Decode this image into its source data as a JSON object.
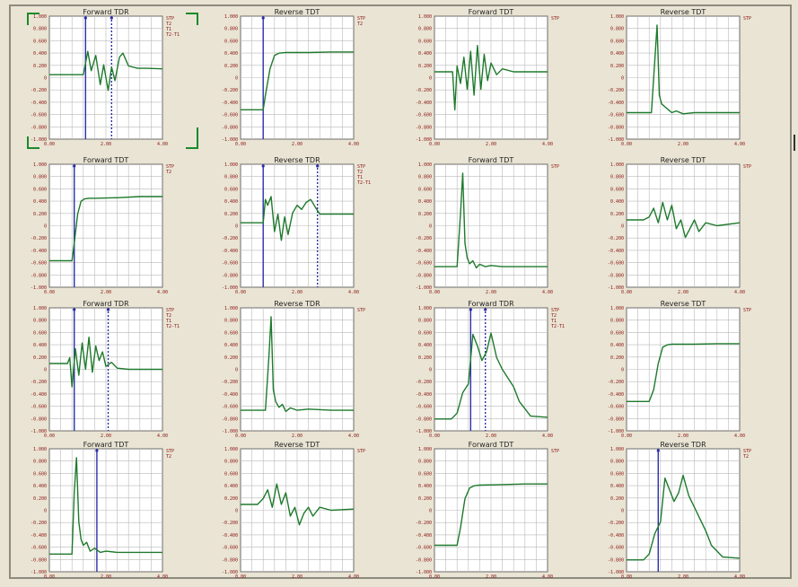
{
  "window": {
    "background": "#e9e4d3"
  },
  "colors": {
    "trace": "#1e7a2c",
    "cursor": "#2b2fa8",
    "grid": "#b9b9b9",
    "tick": "#8b1212",
    "plot_bg": "#ffffff"
  },
  "chart_data": [
    {
      "type": "line",
      "title": "Forward TDR",
      "selected": true,
      "y_ticks": [
        "1.000",
        "0.800",
        "0.600",
        "0.400",
        "0.200",
        "0",
        "-0.200",
        "-0.400",
        "-0.600",
        "-0.800",
        "-1.000"
      ],
      "x_ticks": [
        "0.00",
        "2.00",
        "4.00"
      ],
      "legend": [
        "STP",
        "T2",
        "T1",
        "T2-T1"
      ],
      "cursors": [
        0.32,
        0.55
      ],
      "series": [
        {
          "x": [
            0,
            0.3,
            0.32,
            0.34,
            0.37,
            0.41,
            0.45,
            0.48,
            0.52,
            0.55,
            0.58,
            0.62,
            0.65,
            0.7,
            0.78,
            0.86,
            1
          ],
          "y": [
            0.05,
            0.05,
            0.25,
            0.45,
            0.12,
            0.38,
            -0.12,
            0.22,
            -0.22,
            0.18,
            -0.05,
            0.35,
            0.42,
            0.2,
            0.16,
            0.16,
            0.15
          ]
        }
      ]
    },
    {
      "type": "line",
      "title": "Reverse TDT",
      "selected": false,
      "y_ticks": [
        "1.000",
        "0.800",
        "0.600",
        "0.400",
        "0.200",
        "0",
        "-0.200",
        "-0.400",
        "-0.600",
        "-0.800",
        "-1.000"
      ],
      "x_ticks": [
        "0.00",
        "2.00",
        "4.00"
      ],
      "legend": [
        "STP",
        "T2"
      ],
      "cursors": [
        0.2
      ],
      "series": [
        {
          "x": [
            0,
            0.2,
            0.22,
            0.26,
            0.3,
            0.34,
            0.4,
            0.6,
            0.8,
            1
          ],
          "y": [
            -0.55,
            -0.55,
            -0.3,
            0.15,
            0.38,
            0.42,
            0.43,
            0.43,
            0.44,
            0.44
          ]
        }
      ]
    },
    {
      "type": "line",
      "title": "Forward TDT",
      "selected": false,
      "y_ticks": [
        "1.000",
        "0.800",
        "0.600",
        "0.400",
        "0.200",
        "0",
        "-0.200",
        "-0.400",
        "-0.600",
        "-0.800",
        "-1.000"
      ],
      "x_ticks": [
        "0.00",
        "2.00",
        "4.00"
      ],
      "legend": [
        "STP"
      ],
      "cursors": [],
      "series": [
        {
          "x": [
            0,
            0.16,
            0.18,
            0.2,
            0.23,
            0.26,
            0.29,
            0.32,
            0.35,
            0.38,
            0.41,
            0.44,
            0.47,
            0.5,
            0.55,
            0.6,
            0.7,
            0.8,
            1
          ],
          "y": [
            0.1,
            0.1,
            -0.55,
            0.2,
            -0.1,
            0.35,
            -0.2,
            0.45,
            -0.3,
            0.55,
            -0.2,
            0.4,
            -0.05,
            0.25,
            0.05,
            0.15,
            0.1,
            0.1,
            0.1
          ]
        }
      ]
    },
    {
      "type": "line",
      "title": "Reverse TDT",
      "selected": false,
      "y_ticks": [
        "1.000",
        "0.800",
        "0.600",
        "0.400",
        "0.200",
        "0",
        "-0.200",
        "-0.400",
        "-0.600",
        "-0.800",
        "-1.000"
      ],
      "x_ticks": [
        "0.00",
        "2.00",
        "4.00"
      ],
      "legend": [
        "STP"
      ],
      "cursors": [],
      "series": [
        {
          "x": [
            0,
            0.22,
            0.25,
            0.27,
            0.29,
            0.31,
            0.34,
            0.37,
            0.4,
            0.44,
            0.5,
            0.6,
            0.8,
            1
          ],
          "y": [
            -0.6,
            -0.6,
            0.3,
            0.9,
            -0.3,
            -0.45,
            -0.5,
            -0.55,
            -0.6,
            -0.57,
            -0.62,
            -0.6,
            -0.6,
            -0.6
          ]
        }
      ]
    },
    {
      "type": "line",
      "title": "Forward TDT",
      "selected": false,
      "y_ticks": [
        "1.000",
        "0.800",
        "0.600",
        "0.400",
        "0.200",
        "0",
        "-0.200",
        "-0.400",
        "-0.600",
        "-0.800",
        "-1.000"
      ],
      "x_ticks": [
        "0.00",
        "2.00",
        "4.00"
      ],
      "legend": [
        "STP",
        "T2"
      ],
      "cursors": [
        0.22
      ],
      "series": [
        {
          "x": [
            0,
            0.2,
            0.22,
            0.25,
            0.28,
            0.31,
            0.35,
            0.4,
            0.6,
            0.8,
            1
          ],
          "y": [
            -0.6,
            -0.6,
            -0.3,
            0.2,
            0.42,
            0.46,
            0.47,
            0.47,
            0.48,
            0.5,
            0.5
          ]
        }
      ]
    },
    {
      "type": "line",
      "title": "Reverse TDR",
      "selected": false,
      "y_ticks": [
        "1.000",
        "0.800",
        "0.600",
        "0.400",
        "0.200",
        "0",
        "-0.200",
        "-0.400",
        "-0.600",
        "-0.800",
        "-1.000"
      ],
      "x_ticks": [
        "0.00",
        "2.00",
        "4.00"
      ],
      "legend": [
        "STP",
        "T2",
        "T1",
        "T2-T1"
      ],
      "cursors": [
        0.2,
        0.68
      ],
      "series": [
        {
          "x": [
            0,
            0.2,
            0.22,
            0.24,
            0.27,
            0.3,
            0.33,
            0.36,
            0.39,
            0.42,
            0.46,
            0.5,
            0.54,
            0.58,
            0.62,
            0.66,
            0.7,
            0.8,
            1
          ],
          "y": [
            0.05,
            0.05,
            0.45,
            0.35,
            0.5,
            -0.1,
            0.2,
            -0.25,
            0.15,
            -0.15,
            0.22,
            0.35,
            0.28,
            0.4,
            0.45,
            0.32,
            0.2,
            0.2,
            0.2
          ]
        }
      ]
    },
    {
      "type": "line",
      "title": "Forward TDT",
      "selected": false,
      "y_ticks": [
        "1.000",
        "0.800",
        "0.600",
        "0.400",
        "0.200",
        "0",
        "-0.200",
        "-0.400",
        "-0.600",
        "-0.800",
        "-1.000"
      ],
      "x_ticks": [
        "0.00",
        "2.00",
        "4.00"
      ],
      "legend": [
        "STP"
      ],
      "cursors": [],
      "series": [
        {
          "x": [
            0,
            0.2,
            0.23,
            0.25,
            0.27,
            0.29,
            0.31,
            0.34,
            0.37,
            0.4,
            0.45,
            0.5,
            0.6,
            0.8,
            1
          ],
          "y": [
            -0.7,
            -0.7,
            0.2,
            0.9,
            -0.3,
            -0.55,
            -0.65,
            -0.6,
            -0.72,
            -0.66,
            -0.7,
            -0.68,
            -0.7,
            -0.7,
            -0.7
          ]
        }
      ]
    },
    {
      "type": "line",
      "title": "Reverse TDT",
      "selected": false,
      "y_ticks": [
        "1.000",
        "0.800",
        "0.600",
        "0.400",
        "0.200",
        "0",
        "-0.200",
        "-0.400",
        "-0.600",
        "-0.800",
        "-1.000"
      ],
      "x_ticks": [
        "0.00",
        "2.00",
        "4.00"
      ],
      "legend": [
        "STP"
      ],
      "cursors": [],
      "series": [
        {
          "x": [
            0,
            0.15,
            0.2,
            0.24,
            0.28,
            0.32,
            0.36,
            0.4,
            0.44,
            0.48,
            0.52,
            0.56,
            0.6,
            0.64,
            0.7,
            0.8,
            1
          ],
          "y": [
            0.1,
            0.1,
            0.15,
            0.3,
            0.05,
            0.4,
            0.1,
            0.35,
            -0.05,
            0.1,
            -0.2,
            -0.05,
            0.1,
            -0.1,
            0.05,
            0.0,
            0.05
          ]
        }
      ]
    },
    {
      "type": "line",
      "title": "Forward TDR",
      "selected": false,
      "y_ticks": [
        "1.000",
        "0.800",
        "0.600",
        "0.400",
        "0.200",
        "0",
        "-0.200",
        "-0.400",
        "-0.600",
        "-0.800",
        "-1.000"
      ],
      "x_ticks": [
        "0.00",
        "2.00",
        "4.00"
      ],
      "legend": [
        "STP",
        "T2",
        "T1",
        "T2-T1"
      ],
      "cursors": [
        0.22,
        0.52
      ],
      "series": [
        {
          "x": [
            0,
            0.16,
            0.18,
            0.2,
            0.23,
            0.26,
            0.29,
            0.32,
            0.35,
            0.38,
            0.41,
            0.44,
            0.47,
            0.5,
            0.55,
            0.6,
            0.7,
            0.8,
            1
          ],
          "y": [
            0.1,
            0.1,
            0.2,
            -0.3,
            0.35,
            -0.1,
            0.45,
            0.0,
            0.55,
            -0.05,
            0.4,
            0.15,
            0.3,
            0.05,
            0.12,
            0.02,
            0.0,
            0.0,
            0.0
          ]
        }
      ]
    },
    {
      "type": "line",
      "title": "Reverse TDR",
      "selected": false,
      "y_ticks": [
        "1.000",
        "0.800",
        "0.600",
        "0.400",
        "0.200",
        "0",
        "-0.200",
        "-0.400",
        "-0.600",
        "-0.800",
        "-1.000"
      ],
      "x_ticks": [
        "0.00",
        "2.00",
        "4.00"
      ],
      "legend": [
        "STP"
      ],
      "cursors": [],
      "series": [
        {
          "x": [
            0,
            0.22,
            0.25,
            0.27,
            0.29,
            0.31,
            0.34,
            0.37,
            0.4,
            0.44,
            0.5,
            0.6,
            0.8,
            1
          ],
          "y": [
            -0.7,
            -0.7,
            0.2,
            0.9,
            -0.35,
            -0.55,
            -0.65,
            -0.6,
            -0.72,
            -0.66,
            -0.7,
            -0.68,
            -0.7,
            -0.7
          ]
        }
      ]
    },
    {
      "type": "line",
      "title": "Forward TDR",
      "selected": false,
      "y_ticks": [
        "1.000",
        "0.800",
        "0.600",
        "0.400",
        "0.200",
        "0",
        "-0.200",
        "-0.400",
        "-0.600",
        "-0.800",
        "-1.000"
      ],
      "x_ticks": [
        "0.00",
        "2.00",
        "4.00"
      ],
      "legend": [
        "STP",
        "T2",
        "T1",
        "T2-T1"
      ],
      "cursors": [
        0.32,
        0.45
      ],
      "series": [
        {
          "x": [
            0,
            0.15,
            0.2,
            0.25,
            0.3,
            0.34,
            0.38,
            0.42,
            0.46,
            0.5,
            0.55,
            0.6,
            0.65,
            0.7,
            0.75,
            0.85,
            1
          ],
          "y": [
            -0.85,
            -0.85,
            -0.75,
            -0.4,
            -0.25,
            0.6,
            0.4,
            0.15,
            0.3,
            0.62,
            0.2,
            0.0,
            -0.15,
            -0.3,
            -0.55,
            -0.8,
            -0.82
          ]
        }
      ]
    },
    {
      "type": "line",
      "title": "Reverse TDT",
      "selected": false,
      "y_ticks": [
        "1.000",
        "0.800",
        "0.600",
        "0.400",
        "0.200",
        "0",
        "-0.200",
        "-0.400",
        "-0.600",
        "-0.800",
        "-1.000"
      ],
      "x_ticks": [
        "0.00",
        "2.00",
        "4.00"
      ],
      "legend": [
        "STP"
      ],
      "cursors": [],
      "series": [
        {
          "x": [
            0,
            0.2,
            0.24,
            0.28,
            0.32,
            0.36,
            0.4,
            0.6,
            0.8,
            1
          ],
          "y": [
            -0.55,
            -0.55,
            -0.35,
            0.1,
            0.38,
            0.42,
            0.43,
            0.43,
            0.44,
            0.44
          ]
        }
      ]
    },
    {
      "type": "line",
      "title": "Forward TDT",
      "selected": false,
      "y_ticks": [
        "1.000",
        "0.800",
        "0.600",
        "0.400",
        "0.200",
        "0",
        "-0.200",
        "-0.400",
        "-0.600",
        "-0.800",
        "-1.000"
      ],
      "x_ticks": [
        "0.00",
        "2.00",
        "4.00"
      ],
      "legend": [
        "STP",
        "T2"
      ],
      "cursors": [
        0.42
      ],
      "series": [
        {
          "x": [
            0,
            0.2,
            0.22,
            0.24,
            0.26,
            0.28,
            0.3,
            0.33,
            0.36,
            0.4,
            0.45,
            0.5,
            0.6,
            0.8,
            1
          ],
          "y": [
            -0.75,
            -0.75,
            0.3,
            0.9,
            -0.2,
            -0.5,
            -0.6,
            -0.55,
            -0.7,
            -0.65,
            -0.72,
            -0.7,
            -0.72,
            -0.72,
            -0.72
          ]
        }
      ]
    },
    {
      "type": "line",
      "title": "Reverse TDT",
      "selected": false,
      "y_ticks": [
        "1.000",
        "0.800",
        "0.600",
        "0.400",
        "0.200",
        "0",
        "-0.200",
        "-0.400",
        "-0.600",
        "-0.800",
        "-1.000"
      ],
      "x_ticks": [
        "0.00",
        "2.00",
        "4.00"
      ],
      "legend": [
        "STP"
      ],
      "cursors": [],
      "series": [
        {
          "x": [
            0,
            0.15,
            0.2,
            0.24,
            0.28,
            0.32,
            0.36,
            0.4,
            0.44,
            0.48,
            0.52,
            0.56,
            0.6,
            0.64,
            0.7,
            0.8,
            1
          ],
          "y": [
            0.1,
            0.1,
            0.2,
            0.35,
            0.05,
            0.45,
            0.1,
            0.3,
            -0.1,
            0.05,
            -0.25,
            -0.05,
            0.05,
            -0.1,
            0.05,
            0.0,
            0.02
          ]
        }
      ]
    },
    {
      "type": "line",
      "title": "Forward TDT",
      "selected": false,
      "y_ticks": [
        "1.000",
        "0.800",
        "0.600",
        "0.400",
        "0.200",
        "0",
        "-0.200",
        "-0.400",
        "-0.600",
        "-0.800",
        "-1.000"
      ],
      "x_ticks": [
        "0.00",
        "2.00",
        "4.00"
      ],
      "legend": [
        "STP"
      ],
      "cursors": [],
      "series": [
        {
          "x": [
            0,
            0.2,
            0.23,
            0.27,
            0.31,
            0.35,
            0.4,
            0.6,
            0.8,
            1
          ],
          "y": [
            -0.6,
            -0.6,
            -0.3,
            0.2,
            0.38,
            0.42,
            0.43,
            0.44,
            0.45,
            0.45
          ]
        }
      ]
    },
    {
      "type": "line",
      "title": "Reverse TDR",
      "selected": false,
      "y_ticks": [
        "1.000",
        "0.800",
        "0.600",
        "0.400",
        "0.200",
        "0",
        "-0.200",
        "-0.400",
        "-0.600",
        "-0.800",
        "-1.000"
      ],
      "x_ticks": [
        "0.00",
        "2.00",
        "4.00"
      ],
      "legend": [
        "STP",
        "T2"
      ],
      "cursors": [
        0.28
      ],
      "series": [
        {
          "x": [
            0,
            0.15,
            0.2,
            0.25,
            0.3,
            0.34,
            0.38,
            0.42,
            0.46,
            0.5,
            0.55,
            0.6,
            0.65,
            0.7,
            0.75,
            0.85,
            1
          ],
          "y": [
            -0.85,
            -0.85,
            -0.75,
            -0.4,
            -0.2,
            0.55,
            0.35,
            0.15,
            0.3,
            0.6,
            0.25,
            0.05,
            -0.15,
            -0.35,
            -0.6,
            -0.8,
            -0.82
          ]
        }
      ]
    }
  ]
}
